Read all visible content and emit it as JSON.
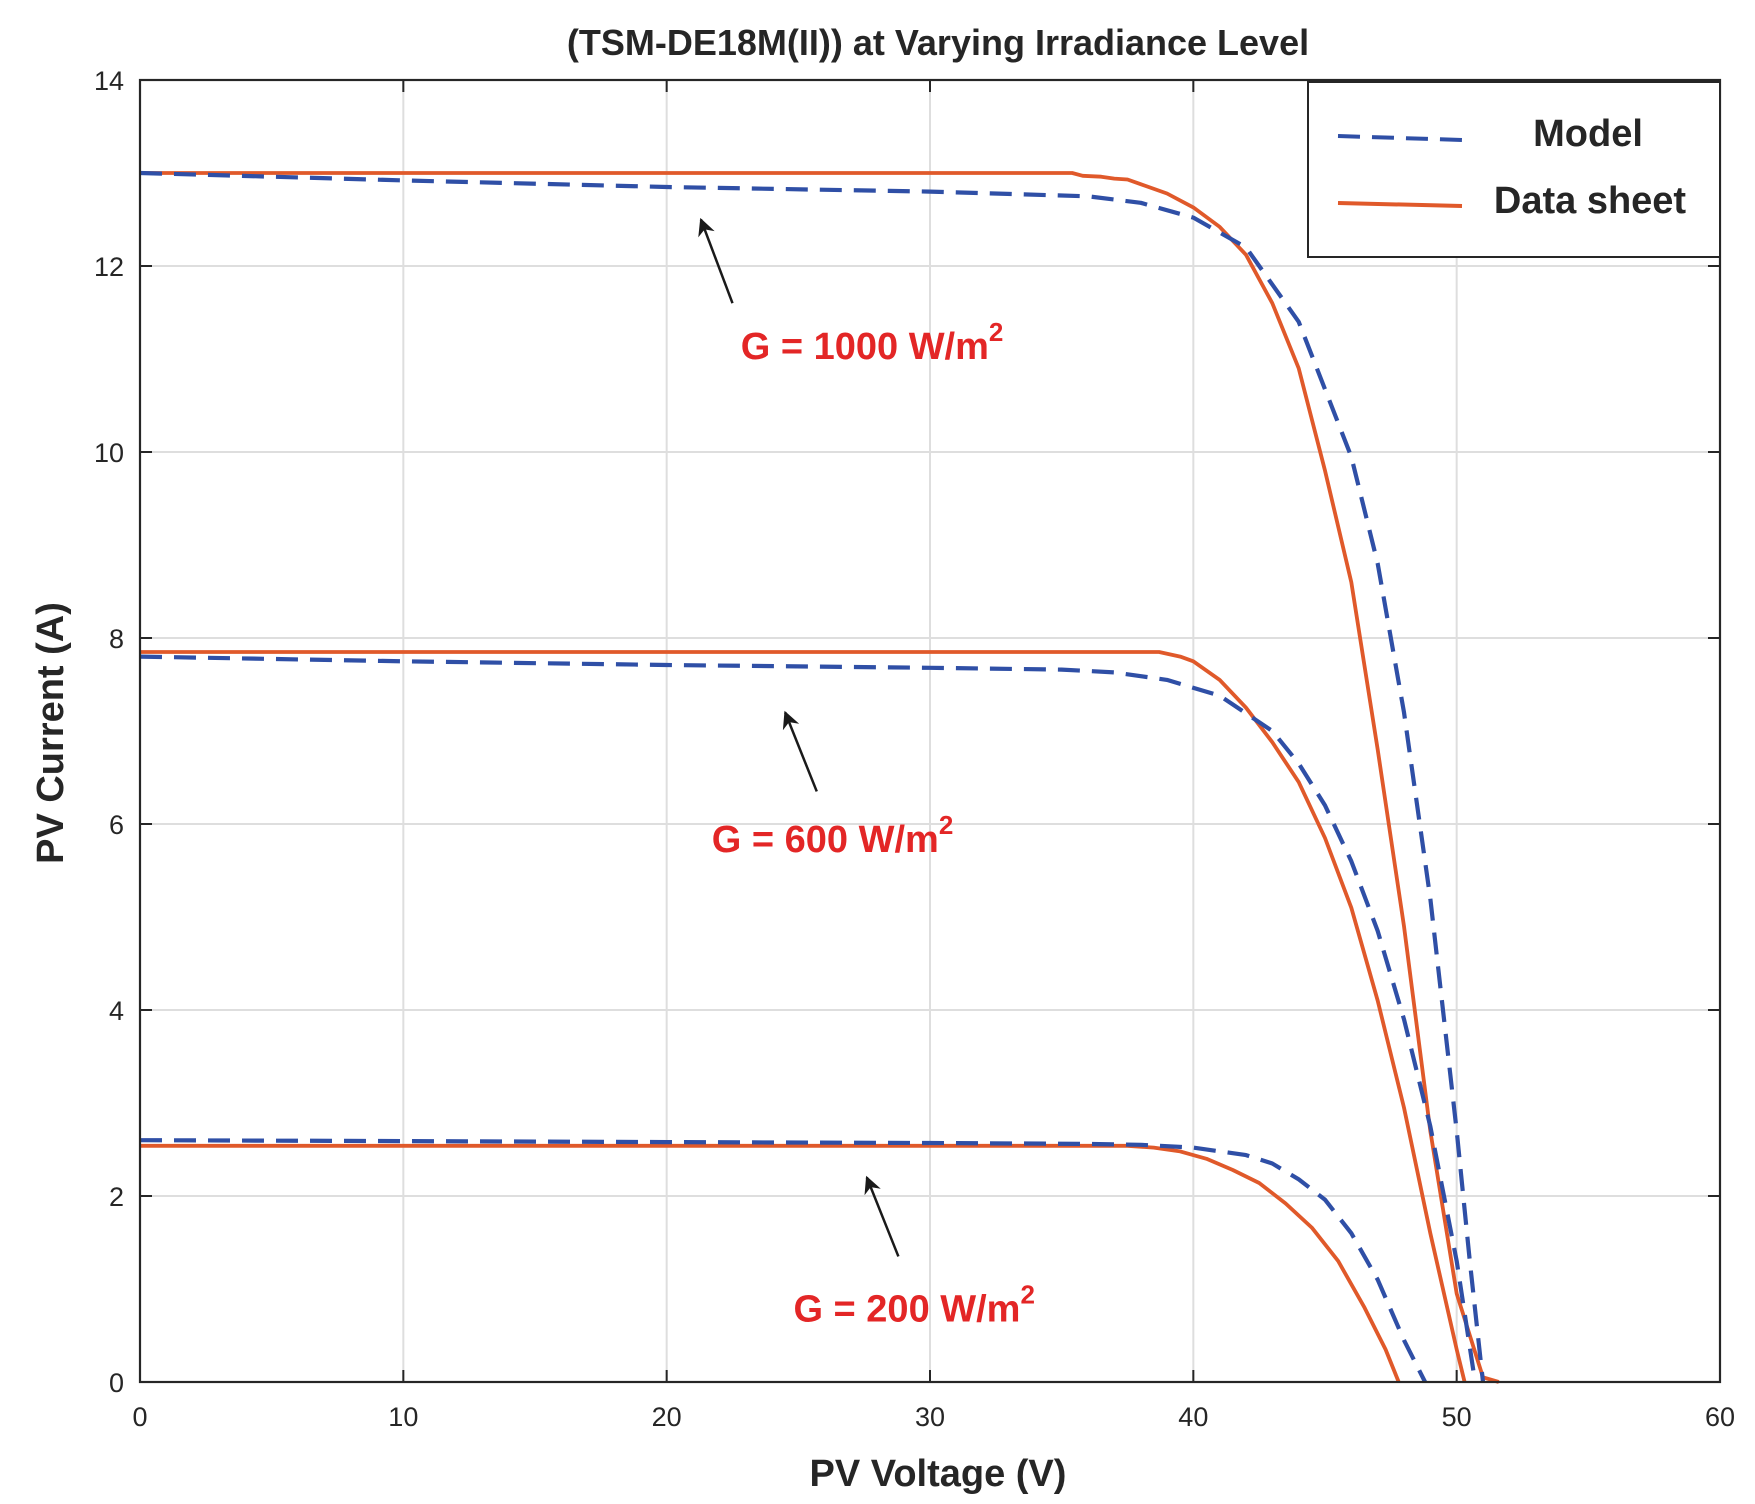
{
  "chart_data": {
    "type": "line",
    "title": "(TSM-DE18M(II)) at Varying Irradiance Level",
    "xlabel": "PV Voltage (V)",
    "ylabel": "PV Current (A)",
    "xlim": [
      0,
      60
    ],
    "ylim": [
      0,
      14
    ],
    "xticks": [
      0,
      10,
      20,
      30,
      40,
      50,
      60
    ],
    "yticks": [
      0,
      2,
      4,
      6,
      8,
      10,
      12,
      14
    ],
    "grid": true,
    "legend_position": "top-right",
    "legend": [
      {
        "label": "Model",
        "style": "dashed",
        "color": "#2f4fa6"
      },
      {
        "label": "Data sheet",
        "style": "solid",
        "color": "#e0592a"
      }
    ],
    "colors": {
      "model": "#2f4fa6",
      "datasheet": "#e0592a",
      "annotation": "#e32626",
      "arrow": "#1a1a1a"
    },
    "series": [
      {
        "name": "Model",
        "irradiance": "1000",
        "style": "dashed",
        "x": [
          0,
          10,
          20,
          30,
          36,
          38,
          40,
          42,
          44,
          46,
          47,
          48,
          49,
          50,
          50.5,
          51
        ],
        "y": [
          13.0,
          12.92,
          12.85,
          12.8,
          12.75,
          12.68,
          12.52,
          12.2,
          11.4,
          9.95,
          8.8,
          7.2,
          5.2,
          2.7,
          1.3,
          0
        ]
      },
      {
        "name": "Data sheet",
        "irradiance": "1000",
        "style": "solid",
        "x": [
          0,
          35.4,
          35.8,
          36.5,
          37,
          37.5,
          38,
          39,
          40,
          41,
          42,
          43,
          44,
          45,
          46,
          47,
          48,
          49,
          50,
          51,
          51.6
        ],
        "y": [
          13.0,
          13.0,
          12.97,
          12.96,
          12.94,
          12.93,
          12.88,
          12.78,
          12.63,
          12.42,
          12.12,
          11.6,
          10.9,
          9.8,
          8.6,
          6.8,
          4.9,
          2.7,
          0.95,
          0.05,
          0
        ]
      },
      {
        "name": "Model",
        "irradiance": "600",
        "style": "dashed",
        "x": [
          0,
          10,
          20,
          30,
          35,
          37,
          39,
          41,
          43,
          44,
          45,
          46,
          47,
          48,
          49,
          50,
          50.7
        ],
        "y": [
          7.8,
          7.75,
          7.71,
          7.68,
          7.66,
          7.63,
          7.55,
          7.38,
          7.0,
          6.65,
          6.2,
          5.6,
          4.85,
          3.9,
          2.75,
          1.3,
          0
        ]
      },
      {
        "name": "Data sheet",
        "irradiance": "600",
        "style": "solid",
        "x": [
          0,
          10,
          20,
          30,
          38.7,
          39.5,
          40,
          41,
          42,
          43,
          44,
          45,
          46,
          47,
          48,
          49,
          50,
          50.3
        ],
        "y": [
          7.85,
          7.85,
          7.85,
          7.85,
          7.85,
          7.8,
          7.75,
          7.55,
          7.25,
          6.88,
          6.45,
          5.85,
          5.1,
          4.1,
          2.95,
          1.6,
          0.35,
          0
        ]
      },
      {
        "name": "Model",
        "irradiance": "200",
        "style": "dashed",
        "x": [
          0,
          10,
          20,
          30,
          36,
          38,
          40,
          42,
          43,
          44,
          45,
          46,
          47,
          48,
          48.8
        ],
        "y": [
          2.6,
          2.59,
          2.58,
          2.57,
          2.56,
          2.55,
          2.52,
          2.44,
          2.35,
          2.18,
          1.96,
          1.6,
          1.1,
          0.45,
          0
        ]
      },
      {
        "name": "Data sheet",
        "irradiance": "200",
        "style": "solid",
        "x": [
          0,
          10,
          20,
          30,
          37.5,
          38.5,
          39.5,
          40.5,
          41.5,
          42.5,
          43.5,
          44.5,
          45.5,
          46.5,
          47.3,
          47.8
        ],
        "y": [
          2.54,
          2.54,
          2.54,
          2.54,
          2.54,
          2.52,
          2.48,
          2.4,
          2.28,
          2.14,
          1.92,
          1.66,
          1.3,
          0.8,
          0.35,
          0
        ]
      }
    ],
    "annotations": [
      {
        "prefix": "G = 1000 W/m",
        "sup": "2",
        "label_x": 27.8,
        "label_y": 11.0,
        "arrow_from": [
          22.5,
          11.6
        ],
        "arrow_to": [
          21.3,
          12.5
        ]
      },
      {
        "prefix": "G = 600 W/m",
        "sup": "2",
        "label_x": 26.3,
        "label_y": 5.7,
        "arrow_from": [
          25.7,
          6.35
        ],
        "arrow_to": [
          24.5,
          7.2
        ]
      },
      {
        "prefix": "G = 200 W/m",
        "sup": "2",
        "label_x": 29.4,
        "label_y": 0.65,
        "arrow_from": [
          28.8,
          1.35
        ],
        "arrow_to": [
          27.6,
          2.2
        ]
      }
    ]
  }
}
